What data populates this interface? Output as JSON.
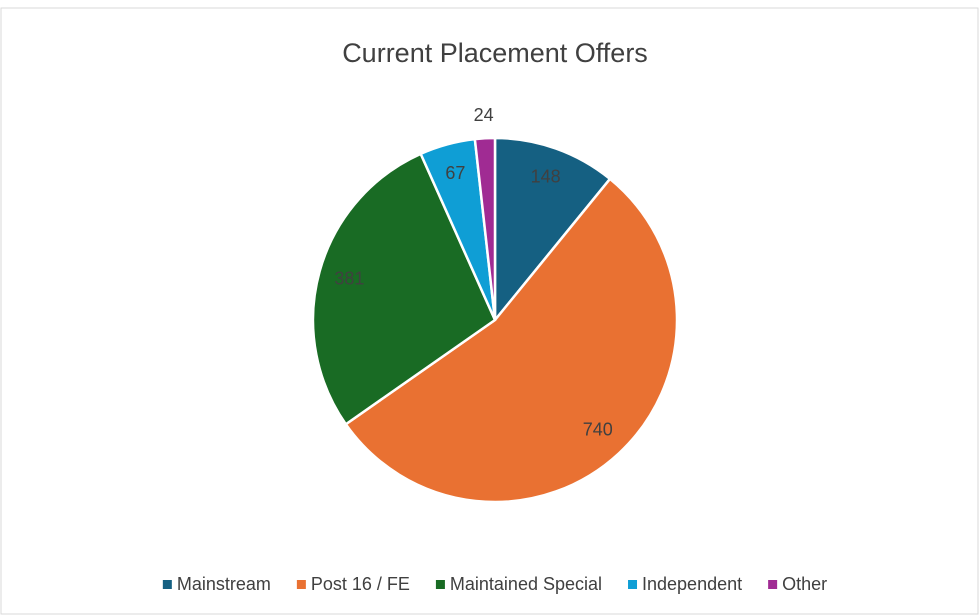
{
  "chart_data": {
    "type": "pie",
    "title": "Current Placement Offers",
    "categories": [
      "Mainstream",
      "Post 16 / FE",
      "Maintained Special",
      "Independent",
      "Other"
    ],
    "values": [
      148,
      740,
      381,
      67,
      24
    ],
    "colors": [
      "#156082",
      "#e97132",
      "#196b24",
      "#0f9ed5",
      "#a02b93"
    ],
    "legend": "bottom"
  }
}
